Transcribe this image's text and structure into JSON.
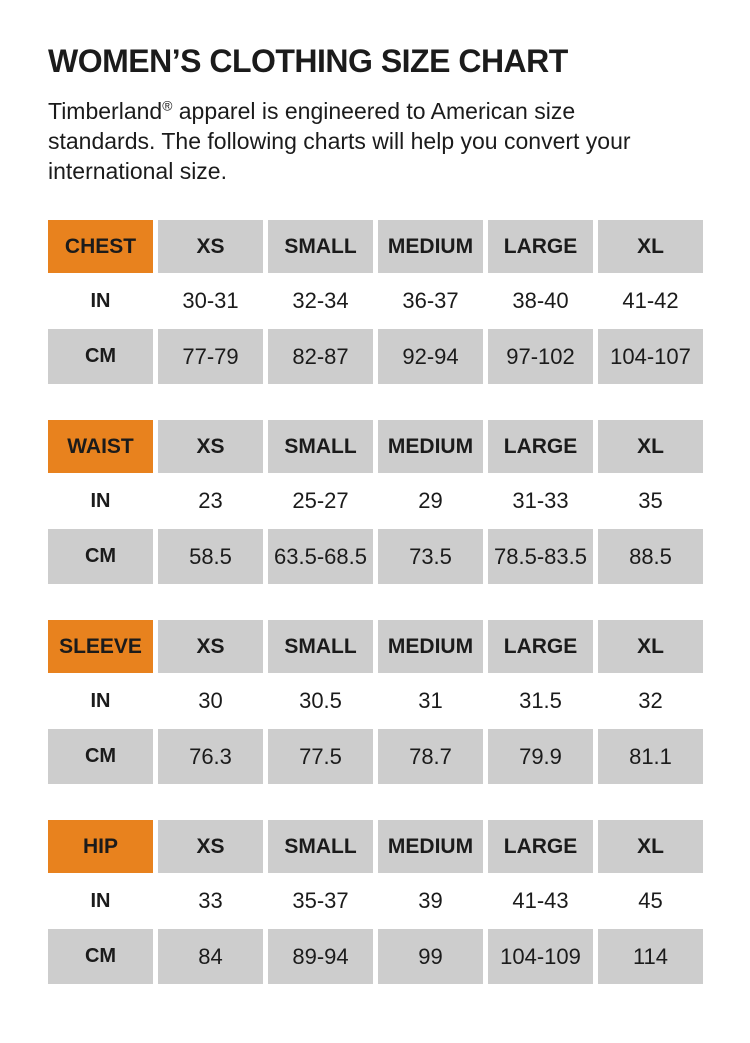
{
  "page": {
    "title": "WOMEN’S CLOTHING SIZE CHART"
  },
  "intro": {
    "brand": "Timberland",
    "registered_mark": "®",
    "line1_rest": " apparel is engineered to American size",
    "line2": "standards. The following charts will help you convert your",
    "line3": "international size."
  },
  "colors": {
    "accent_orange": "#E8821E",
    "cell_gray": "#CDCDCD",
    "text": "#1B1B1B"
  },
  "size_headers": [
    "XS",
    "SMALL",
    "MEDIUM",
    "LARGE",
    "XL"
  ],
  "row_labels": {
    "inches": "IN",
    "centimeters": "CM"
  },
  "tables": [
    {
      "label": "CHEST",
      "in": [
        "30-31",
        "32-34",
        "36-37",
        "38-40",
        "41-42"
      ],
      "cm": [
        "77-79",
        "82-87",
        "92-94",
        "97-102",
        "104-107"
      ]
    },
    {
      "label": "WAIST",
      "in": [
        "23",
        "25-27",
        "29",
        "31-33",
        "35"
      ],
      "cm": [
        "58.5",
        "63.5-68.5",
        "73.5",
        "78.5-83.5",
        "88.5"
      ]
    },
    {
      "label": "SLEEVE",
      "in": [
        "30",
        "30.5",
        "31",
        "31.5",
        "32"
      ],
      "cm": [
        "76.3",
        "77.5",
        "78.7",
        "79.9",
        "81.1"
      ]
    },
    {
      "label": "HIP",
      "in": [
        "33",
        "35-37",
        "39",
        "41-43",
        "45"
      ],
      "cm": [
        "84",
        "89-94",
        "99",
        "104-109",
        "114"
      ]
    }
  ]
}
